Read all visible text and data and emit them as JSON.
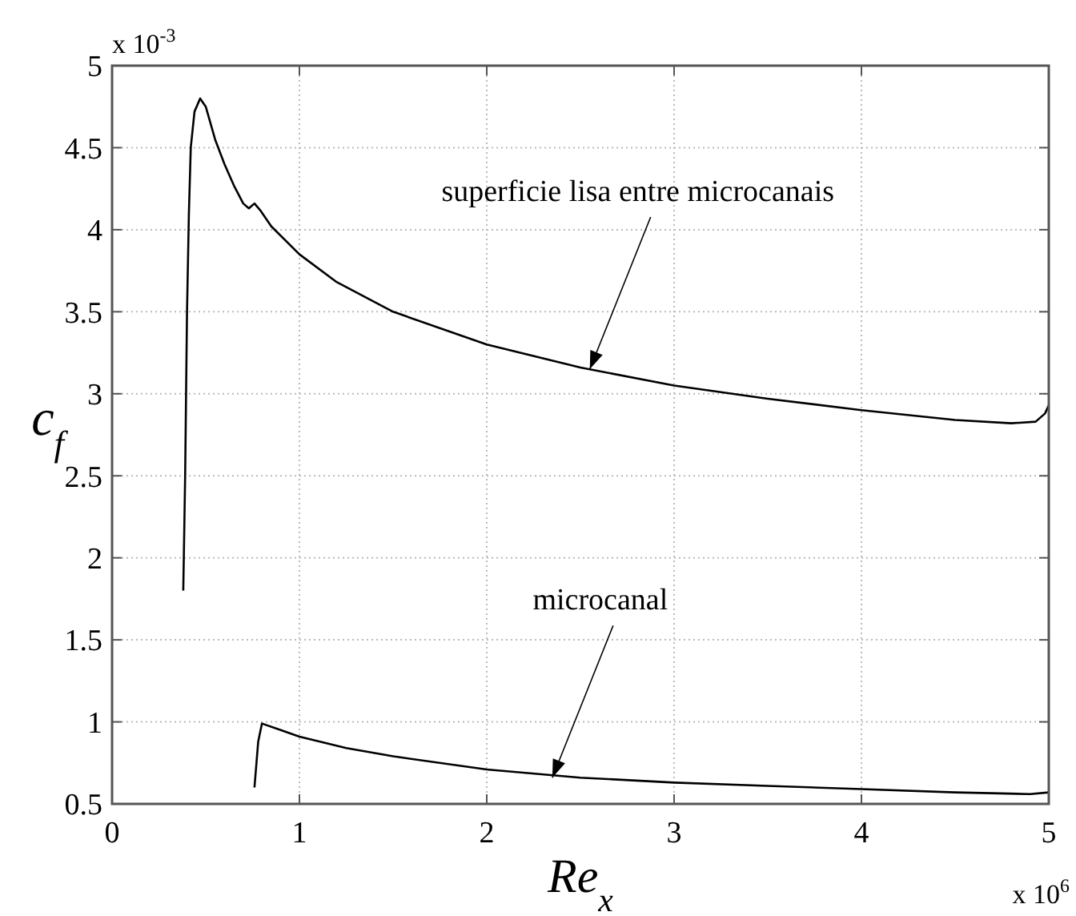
{
  "chart_data": {
    "type": "line",
    "xlabel": "Re$_{x}$",
    "ylabel": "c$_{f}$",
    "xlim": [
      0,
      5
    ],
    "xticks": [
      0,
      1,
      2,
      3,
      4,
      5
    ],
    "ylim": [
      0.5,
      5
    ],
    "yticks": [
      0.5,
      1,
      1.5,
      2,
      2.5,
      3,
      3.5,
      4,
      4.5,
      5
    ],
    "grid": true,
    "marker": "none",
    "line_style": "solid",
    "series": [
      {
        "color": "#000000",
        "x": [
          0.38,
          0.39,
          0.4,
          0.41,
          0.42,
          0.44,
          0.47,
          0.5,
          0.55,
          0.6,
          0.65,
          0.7,
          0.73,
          0.76,
          0.79,
          0.85,
          1.0,
          1.2,
          1.5,
          2.0,
          2.5,
          3.0,
          3.5,
          4.0,
          4.5,
          4.8,
          4.93,
          4.98,
          5.0
        ],
        "values": [
          1.8,
          2.5,
          3.5,
          4.1,
          4.5,
          4.72,
          4.8,
          4.75,
          4.55,
          4.4,
          4.27,
          4.16,
          4.13,
          4.16,
          4.12,
          4.02,
          3.85,
          3.68,
          3.5,
          3.3,
          3.16,
          3.05,
          2.97,
          2.9,
          2.84,
          2.82,
          2.83,
          2.88,
          2.93
        ]
      },
      {
        "color": "#000000",
        "x": [
          0.76,
          0.78,
          0.8,
          0.9,
          1.0,
          1.25,
          1.5,
          2.0,
          2.5,
          3.0,
          3.5,
          4.0,
          4.5,
          4.9,
          5.0
        ],
        "values": [
          0.6,
          0.88,
          0.99,
          0.95,
          0.91,
          0.84,
          0.79,
          0.71,
          0.66,
          0.63,
          0.61,
          0.59,
          0.57,
          0.56,
          0.57
        ]
      }
    ],
    "annotations": [
      {
        "text": "superficie lisa entre microcanais",
        "x": 2.55,
        "y": 3.15
      },
      {
        "text": "microcanal",
        "x": 2.35,
        "y": 0.66
      },
      "x 10$^{-3}$",
      "x 10$^{6}$"
    ]
  }
}
